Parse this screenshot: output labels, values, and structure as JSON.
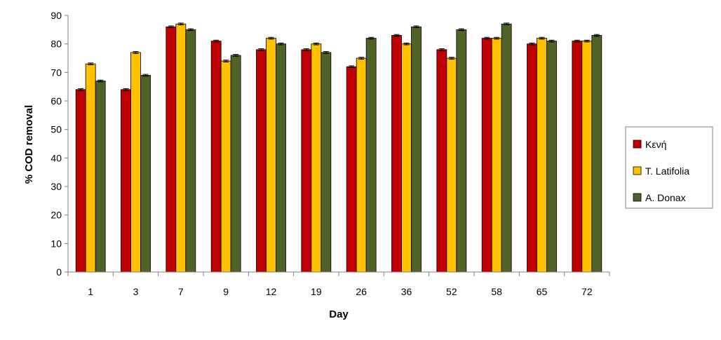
{
  "chart_data": {
    "type": "bar",
    "title": "",
    "xlabel": "Day",
    "ylabel": "% COD removal",
    "ylim": [
      0,
      90
    ],
    "yticks": [
      0,
      10,
      20,
      30,
      40,
      50,
      60,
      70,
      80,
      90
    ],
    "grid": false,
    "legend_position": "right",
    "categories": [
      "1",
      "3",
      "7",
      "9",
      "12",
      "19",
      "26",
      "36",
      "52",
      "58",
      "65",
      "72"
    ],
    "series": [
      {
        "name": "Κενή",
        "color": "#c00000",
        "values": [
          64,
          64,
          86,
          81,
          78,
          78,
          72,
          83,
          78,
          82,
          80,
          81
        ]
      },
      {
        "name": "T. Latifolia",
        "color": "#ffc000",
        "values": [
          73,
          77,
          87,
          74,
          82,
          80,
          75,
          80,
          75,
          82,
          82,
          81
        ]
      },
      {
        "name": "A. Donax",
        "color": "#4f6228",
        "values": [
          67,
          69,
          85,
          76,
          80,
          77,
          82,
          86,
          85,
          87,
          81,
          83
        ]
      }
    ],
    "error_bars": true
  }
}
